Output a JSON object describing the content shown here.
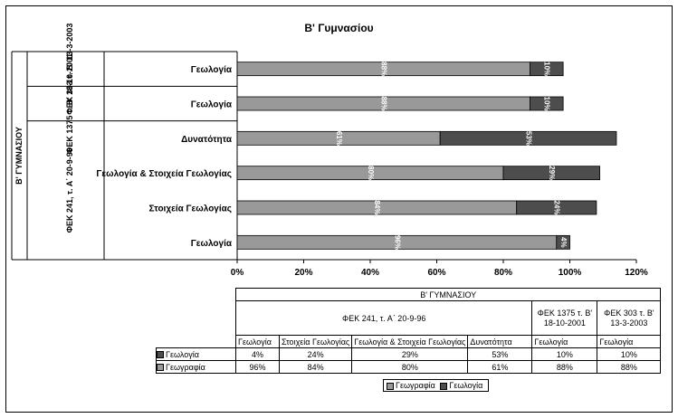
{
  "chart_data": {
    "type": "bar",
    "orientation": "horizontal",
    "stacked": true,
    "title": "Β' Γυμνασίου",
    "outer_group": "Β' ΓΥΜΝΑΣΙΟΥ",
    "groups": [
      {
        "label": "ΦΕΚ 303 τ. Β' 13-3-2003",
        "table_label": "ΦΕΚ 303 τ. Β' 13-3-2003"
      },
      {
        "label": "ΦΕΚ 1375 τ. Β' 18-10-2001",
        "table_label": "ΦΕΚ 1375 τ. Β' 18-10-2001"
      },
      {
        "label": "ΦΕΚ 241, τ. Α΄ 20-9-96",
        "table_label": "ΦΕΚ 241, τ. Α΄ 20-9-96"
      }
    ],
    "categories": [
      "Γεωλογία",
      "Γεωλογία",
      "Δυνατότητα",
      "Γεωλογία & Στοιχεία Γεωλογίας",
      "Στοιχεία Γεωλογίας",
      "Γεωλογία"
    ],
    "series": [
      {
        "name": "Γεωγραφία",
        "color": "#999999",
        "values": [
          88,
          88,
          61,
          80,
          84,
          96
        ],
        "labels": [
          "88%",
          "88%",
          "61%",
          "80%",
          "84%",
          "96%"
        ]
      },
      {
        "name": "Γεωλογία",
        "color": "#4d4d4d",
        "values": [
          10,
          10,
          53,
          29,
          24,
          4
        ],
        "labels": [
          "10%",
          "10%",
          "53%",
          "29%",
          "24%",
          "4%"
        ]
      }
    ],
    "xlim": [
      0,
      120
    ],
    "x_ticks": [
      "0%",
      "20%",
      "40%",
      "60%",
      "80%",
      "100%",
      "120%"
    ],
    "grid": false,
    "table": {
      "header": "Β' ΓΥΜΝΑΣΙΟΥ",
      "group_headers": [
        "ΦΕΚ 241, τ. Α΄ 20-9-96",
        "ΦΕΚ 1375 τ. Β' 18-10-2001",
        "ΦΕΚ 303 τ. Β' 13-3-2003"
      ],
      "columns": [
        "Γεωλογία",
        "Στοιχεία Γεωλογίας",
        "Γεωλογία & Στοιχεία Γεωλογίας",
        "Δυνατότητα",
        "Γεωλογία",
        "Γεωλογία"
      ],
      "rows": [
        {
          "name": "Γεωλογία",
          "values": [
            "4%",
            "24%",
            "29%",
            "53%",
            "10%",
            "10%"
          ]
        },
        {
          "name": "Γεωγραφία",
          "values": [
            "96%",
            "84%",
            "80%",
            "61%",
            "88%",
            "88%"
          ]
        }
      ]
    },
    "legend": [
      "Γεωγραφία",
      "Γεωλογία"
    ],
    "legend_position": "bottom"
  }
}
